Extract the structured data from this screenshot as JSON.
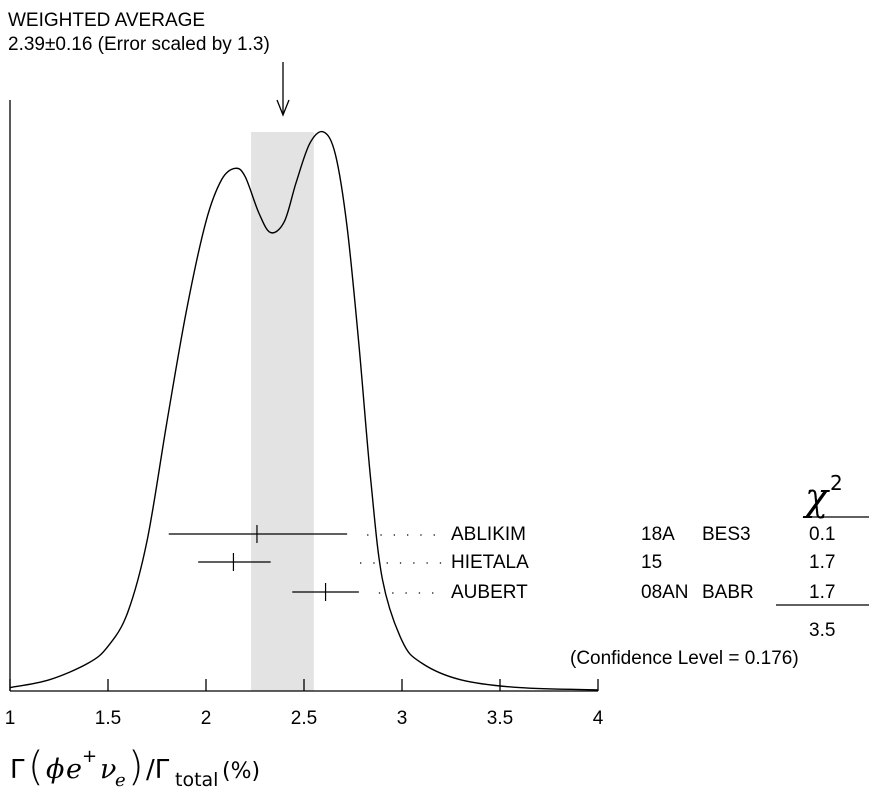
{
  "chart_data": {
    "type": "ideogram",
    "title": "WEIGHTED AVERAGE",
    "subtitle": "2.39±0.16 (Error scaled by 1.3)",
    "average": {
      "value": 2.39,
      "error": 0.16
    },
    "xlim": [
      1,
      4
    ],
    "xticks": [
      1,
      1.5,
      2,
      2.5,
      3,
      3.5,
      4
    ],
    "xtick_labels": [
      "1",
      "1.5",
      "2",
      "2.5",
      "3",
      "3.5",
      "4"
    ],
    "xlabel": "Γ(φ e⁺ νₑ)/Γtotal (%)",
    "chi2_header": "χ",
    "chi2_header_sup": "2",
    "measurements": [
      {
        "author": "ABLIKIM",
        "year": "18A",
        "experiment": "BES3",
        "value": 2.26,
        "lo": 1.81,
        "hi": 2.72,
        "chi2": "0.1"
      },
      {
        "author": "HIETALA",
        "year": "15",
        "experiment": "",
        "value": 2.14,
        "lo": 1.96,
        "hi": 2.33,
        "chi2": "1.7"
      },
      {
        "author": "AUBERT",
        "year": "08AN",
        "experiment": "BABR",
        "value": 2.61,
        "lo": 2.44,
        "hi": 2.78,
        "chi2": "1.7"
      }
    ],
    "chi2_total": "3.5",
    "confidence_label": "(Confidence Level = 0.176)",
    "ideogram_curve": [
      [
        1.0,
        0.006
      ],
      [
        1.2,
        0.02
      ],
      [
        1.4,
        0.05
      ],
      [
        1.5,
        0.08
      ],
      [
        1.6,
        0.14
      ],
      [
        1.7,
        0.27
      ],
      [
        1.8,
        0.48
      ],
      [
        1.9,
        0.68
      ],
      [
        2.0,
        0.84
      ],
      [
        2.08,
        0.915
      ],
      [
        2.15,
        0.935
      ],
      [
        2.2,
        0.92
      ],
      [
        2.27,
        0.855
      ],
      [
        2.33,
        0.82
      ],
      [
        2.4,
        0.84
      ],
      [
        2.46,
        0.91
      ],
      [
        2.53,
        0.98
      ],
      [
        2.6,
        1.0
      ],
      [
        2.66,
        0.96
      ],
      [
        2.72,
        0.83
      ],
      [
        2.78,
        0.62
      ],
      [
        2.84,
        0.38
      ],
      [
        2.9,
        0.2
      ],
      [
        3.0,
        0.09
      ],
      [
        3.1,
        0.05
      ],
      [
        3.3,
        0.02
      ],
      [
        3.6,
        0.006
      ],
      [
        4.0,
        0.002
      ]
    ]
  }
}
